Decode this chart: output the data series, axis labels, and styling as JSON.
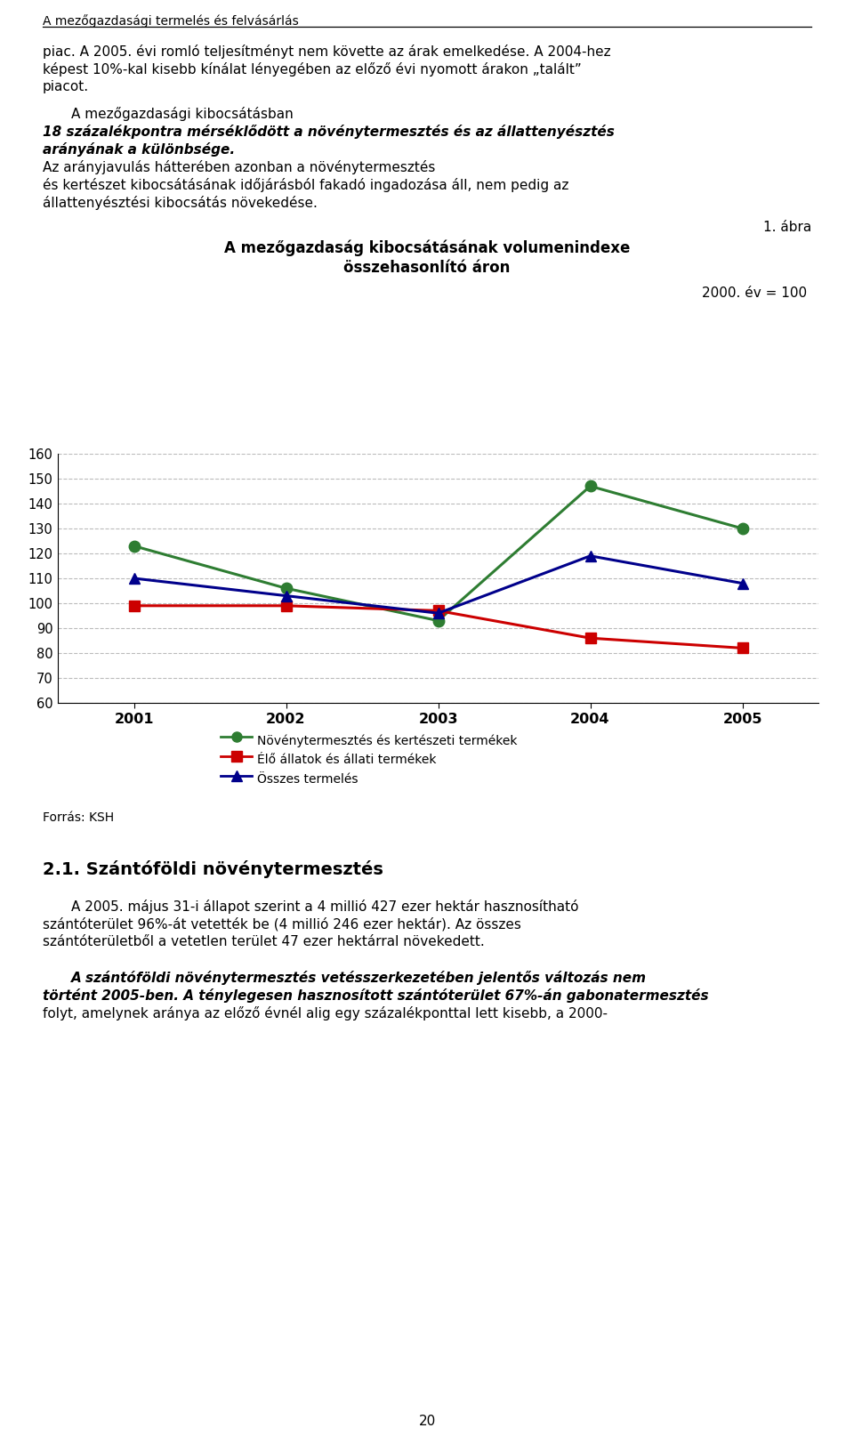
{
  "title_line1": "A mezőgazdaság kibocsátásának volumenindexe",
  "title_line2": "összehasonlító áron",
  "subtitle": "2000. év = 100",
  "years": [
    2001,
    2002,
    2003,
    2004,
    2005
  ],
  "noveny": [
    123,
    106,
    93,
    147,
    130
  ],
  "allat": [
    99,
    99,
    97,
    86,
    82
  ],
  "osszes": [
    110,
    103,
    96,
    119,
    108
  ],
  "noveny_color": "#2e7d32",
  "allat_color": "#cc0000",
  "osszes_color": "#00008b",
  "ylim_min": 60,
  "ylim_max": 160,
  "yticks": [
    60,
    70,
    80,
    90,
    100,
    110,
    120,
    130,
    140,
    150,
    160
  ],
  "legend_noveny": "Növénytermesztés és kertészeti termékek",
  "legend_allat": "Élő állatok és állati termékek",
  "legend_osszes": "Összes termelés",
  "forras": "Forrás: KSH",
  "header": "A mezőgazdasági termelés és felvásárlás",
  "page_number": "20",
  "label_abra": "1. ábra",
  "section_title": "2.1. Szántóföldi növénytermesztés",
  "bg": "#ffffff",
  "grid_color": "#aaaaaa",
  "text_color": "#000000"
}
